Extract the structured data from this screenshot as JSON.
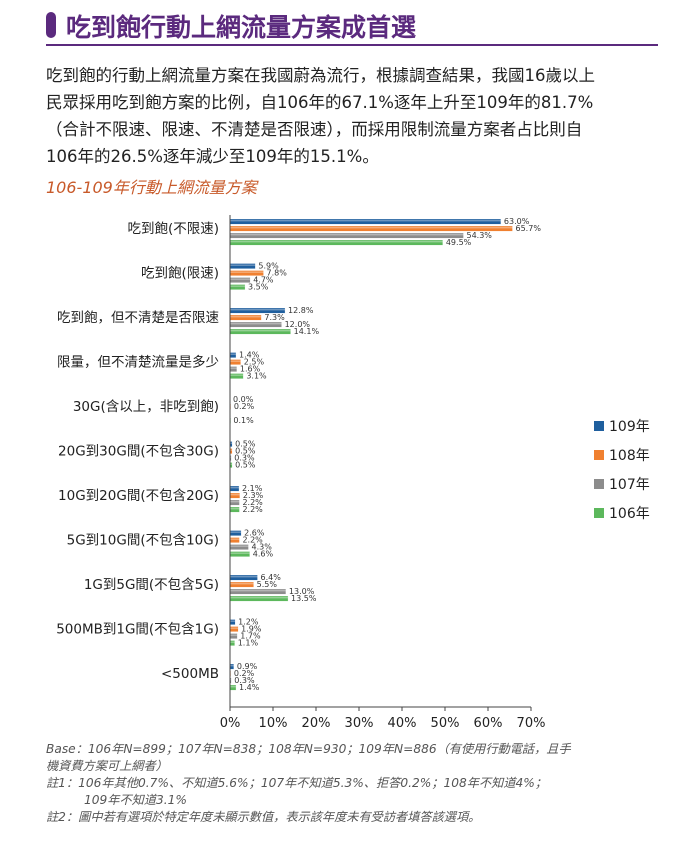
{
  "header": {
    "title": "吃到飽行動上網流量方案成首選",
    "accent_color": "#5b2a7e"
  },
  "intro_lines": [
    "吃到飽的行動上網流量方案在我國蔚為流行，根據調查結果，我國16歲以上",
    "民眾採用吃到飽方案的比例，自106年的67.1%逐年上升至109年的81.7%",
    "（合計不限速、限速、不清楚是否限速），而採用限制流量方案者占比則自",
    "106年的26.5%逐年減少至109年的15.1%。"
  ],
  "chart_title": "106-109年行動上網流量方案",
  "chart_data": {
    "type": "bar",
    "orientation": "horizontal",
    "title": "106-109年行動上網流量方案",
    "categories": [
      "吃到飽(不限速)",
      "吃到飽(限速)",
      "吃到飽，但不清楚是否限速",
      "限量，但不清楚流量是多少",
      "30G(含以上，非吃到飽)",
      "20G到30G間(不包含30G)",
      "10G到20G間(不包含20G)",
      "5G到10G間(不包含10G)",
      "1G到5G間(不包含5G)",
      "500MB到1G間(不包含1G)",
      "<500MB"
    ],
    "series": [
      {
        "name": "109年",
        "color": "#1f5f9e",
        "values": [
          63.0,
          5.9,
          12.8,
          1.4,
          0.0,
          0.5,
          2.1,
          2.6,
          6.4,
          1.2,
          0.9
        ],
        "labels": [
          "63.0%",
          "5.9%",
          "12.8%",
          "1.4%",
          "0.0%",
          "0.5%",
          "2.1%",
          "2.6%",
          "6.4%",
          "1.2%",
          "0.9%"
        ]
      },
      {
        "name": "108年",
        "color": "#f08030",
        "values": [
          65.7,
          7.8,
          7.3,
          2.5,
          0.2,
          0.5,
          2.3,
          2.2,
          5.5,
          1.9,
          0.2
        ],
        "labels": [
          "65.7%",
          "7.8%",
          "7.3%",
          "2.5%",
          "0.2%",
          "0.5%",
          "2.3%",
          "2.2%",
          "5.5%",
          "1.9%",
          "0.2%"
        ]
      },
      {
        "name": "107年",
        "color": "#8c8c8c",
        "values": [
          54.3,
          4.7,
          12.0,
          1.6,
          null,
          0.3,
          2.2,
          4.3,
          13.0,
          1.7,
          0.3
        ],
        "labels": [
          "54.3%",
          "4.7%",
          "12.0%",
          "1.6%",
          "",
          "0.3%",
          "2.2%",
          "4.3%",
          "13.0%",
          "1.7%",
          "0.3%"
        ]
      },
      {
        "name": "106年",
        "color": "#5cb85c",
        "values": [
          49.5,
          3.5,
          14.1,
          3.1,
          0.1,
          0.5,
          2.2,
          4.6,
          13.5,
          1.1,
          1.4
        ],
        "labels": [
          "49.5%",
          "3.5%",
          "14.1%",
          "3.1%",
          "0.1%",
          "0.5%",
          "2.2%",
          "4.6%",
          "13.5%",
          "1.1%",
          "1.4%"
        ]
      }
    ],
    "xlim": [
      0,
      70
    ],
    "xticks": [
      0,
      10,
      20,
      30,
      40,
      50,
      60,
      70
    ],
    "xtick_labels": [
      "0%",
      "10%",
      "20%",
      "30%",
      "40%",
      "50%",
      "60%",
      "70%"
    ],
    "grid": false,
    "legend_position": "right"
  },
  "notes": {
    "base": "Base：106年N=899；107年N=838；108年N=930；109年N=886（有使用行動電話，且手",
    "base_cont": "機資費方案可上網者）",
    "note1": "註1：106年其他0.7%、不知道5.6%；107年不知道5.3%、拒答0.2%；108年不知道4%；",
    "note1_cont": "109年不知道3.1%",
    "note2": "註2：圖中若有選項於特定年度未顯示數值，表示該年度未有受訪者填答該選項。"
  }
}
